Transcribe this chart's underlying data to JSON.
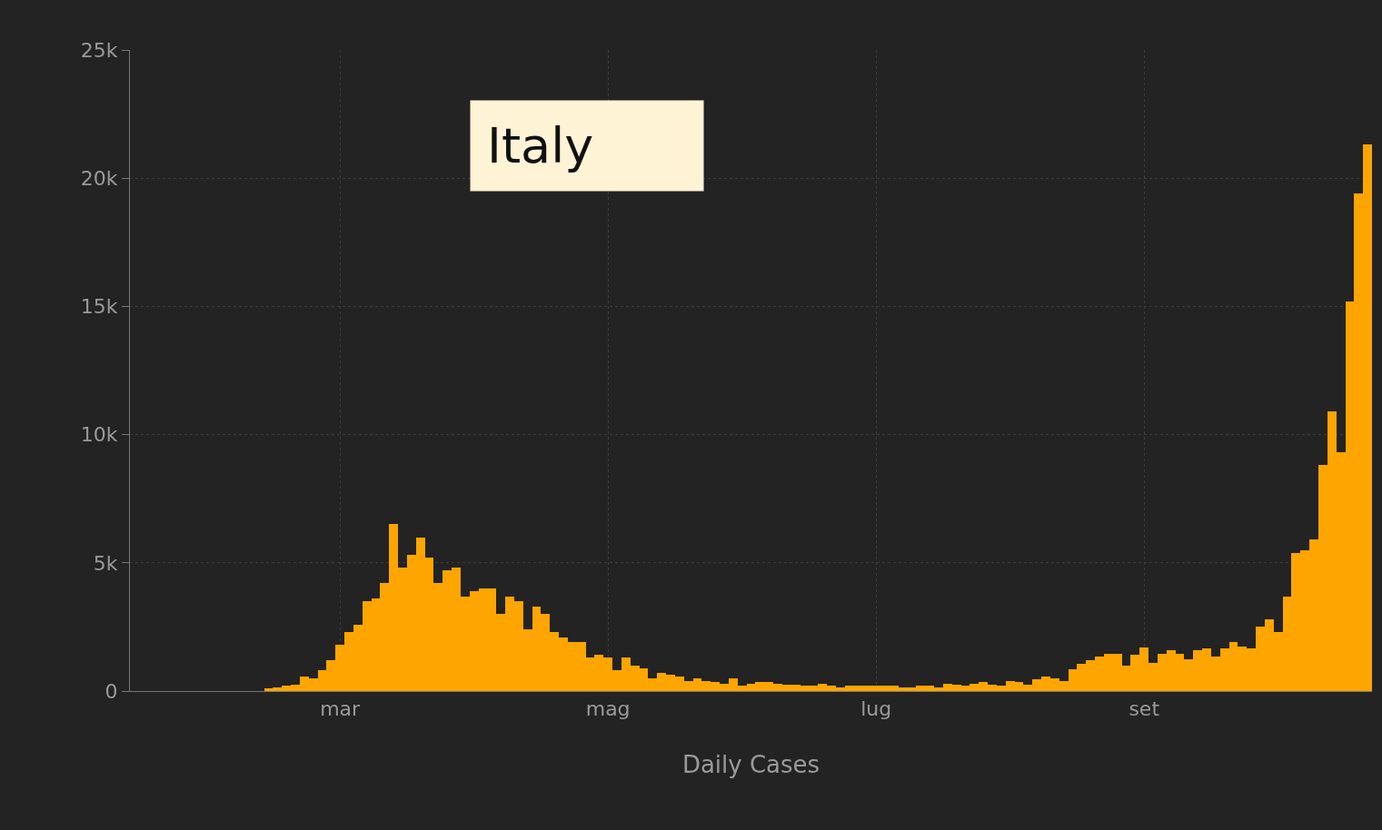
{
  "chart_data": {
    "type": "bar",
    "xlabel": "Daily Cases",
    "annotations": [
      "Italy"
    ],
    "categories": [
      null,
      null,
      null,
      null,
      null,
      null,
      null,
      null,
      null,
      null,
      null,
      null,
      null,
      null,
      null,
      null,
      null,
      null,
      null,
      null,
      null,
      null,
      null,
      "mar",
      null,
      null,
      null,
      null,
      null,
      null,
      null,
      null,
      null,
      null,
      null,
      null,
      null,
      null,
      null,
      null,
      null,
      null,
      null,
      null,
      null,
      null,
      null,
      null,
      null,
      null,
      null,
      null,
      null,
      "mag",
      null,
      null,
      null,
      null,
      null,
      null,
      null,
      null,
      null,
      null,
      null,
      null,
      null,
      null,
      null,
      null,
      null,
      null,
      null,
      null,
      null,
      null,
      null,
      null,
      null,
      null,
      null,
      null,
      null,
      "lug",
      null,
      null,
      null,
      null,
      null,
      null,
      null,
      null,
      null,
      null,
      null,
      null,
      null,
      null,
      null,
      null,
      null,
      null,
      null,
      null,
      null,
      null,
      null,
      null,
      null,
      null,
      null,
      null,
      null,
      "set",
      null,
      null,
      null,
      null,
      null,
      null,
      null,
      null,
      null,
      null,
      null,
      null,
      null,
      null,
      null,
      null,
      null,
      null,
      null,
      null,
      null,
      null,
      null,
      null,
      null
    ],
    "values": [
      0,
      0,
      0,
      0,
      0,
      0,
      0,
      0,
      0,
      0,
      0,
      0,
      0,
      0,
      0,
      100,
      150,
      200,
      250,
      550,
      500,
      800,
      1200,
      1800,
      2300,
      2600,
      3500,
      3600,
      4200,
      6500,
      4800,
      5300,
      6000,
      5200,
      4200,
      4700,
      4800,
      3700,
      3900,
      4000,
      4000,
      3000,
      3700,
      3500,
      2400,
      3300,
      3000,
      2300,
      2100,
      1900,
      1900,
      1300,
      1400,
      1300,
      800,
      1300,
      1000,
      900,
      500,
      700,
      650,
      550,
      400,
      500,
      400,
      350,
      300,
      500,
      200,
      300,
      350,
      350,
      300,
      250,
      250,
      200,
      200,
      300,
      200,
      150,
      200,
      200,
      200,
      200,
      200,
      200,
      150,
      150,
      200,
      200,
      150,
      300,
      250,
      200,
      300,
      350,
      250,
      200,
      400,
      350,
      250,
      450,
      550,
      500,
      400,
      850,
      1050,
      1200,
      1350,
      1450,
      1450,
      1000,
      1400,
      1700,
      1100,
      1450,
      1600,
      1450,
      1250,
      1600,
      1650,
      1350,
      1650,
      1900,
      1750,
      1650,
      2500,
      2800,
      2300,
      3700,
      5400,
      5500,
      5900,
      8800,
      10900,
      9300,
      15200,
      19400,
      21300
    ],
    "color": "#ffa500",
    "ylim": [
      0,
      25000
    ],
    "yticks": [
      {
        "value": 0,
        "label": "0"
      },
      {
        "value": 5000,
        "label": "5k"
      },
      {
        "value": 10000,
        "label": "10k"
      },
      {
        "value": 15000,
        "label": "15k"
      },
      {
        "value": 20000,
        "label": "20k"
      },
      {
        "value": 25000,
        "label": "25k"
      }
    ],
    "grid": true
  }
}
